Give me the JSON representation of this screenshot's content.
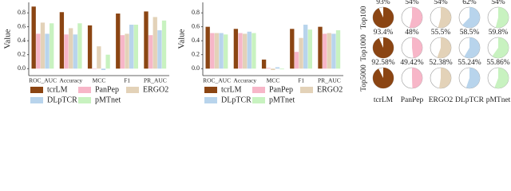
{
  "chart_data": [
    {
      "type": "bar",
      "y_label": "Value",
      "categories": [
        "ROC_AUC",
        "Accuracy",
        "MCC",
        "F1",
        "PR_AUC"
      ],
      "ylim": [
        -0.1,
        0.95
      ],
      "yticks": [
        {
          "value": 0,
          "label": "0.0"
        },
        {
          "value": 0.2,
          "label": "0.2"
        },
        {
          "value": 0.4,
          "label": "0.4"
        },
        {
          "value": 0.6,
          "label": "0.6"
        },
        {
          "value": 0.8,
          "label": "0.8"
        }
      ],
      "series": [
        {
          "name": "tcrLM",
          "color": "#8b4513",
          "values": [
            0.89,
            0.81,
            0.62,
            0.79,
            0.82
          ]
        },
        {
          "name": "PanPep",
          "color": "#f7b6c8",
          "values": [
            0.5,
            0.49,
            0.0,
            0.48,
            0.48
          ]
        },
        {
          "name": "ERGO2",
          "color": "#e3d2b8",
          "values": [
            0.66,
            0.58,
            0.32,
            0.5,
            0.74
          ]
        },
        {
          "name": "DLpTCR",
          "color": "#b8d4ec",
          "values": [
            0.5,
            0.49,
            -0.02,
            0.63,
            0.55
          ]
        },
        {
          "name": "pMTnet",
          "color": "#c8f2c0",
          "values": [
            0.65,
            0.65,
            0.2,
            0.63,
            0.69
          ]
        }
      ]
    },
    {
      "type": "bar",
      "y_label": "Value",
      "categories": [
        "ROC_AUC",
        "Accuracy",
        "MCC",
        "F1",
        "PR_AUC"
      ],
      "ylim": [
        -0.1,
        0.95
      ],
      "yticks": [
        {
          "value": 0,
          "label": "0.0"
        },
        {
          "value": 0.2,
          "label": "0.2"
        },
        {
          "value": 0.4,
          "label": "0.4"
        },
        {
          "value": 0.6,
          "label": "0.6"
        },
        {
          "value": 0.8,
          "label": "0.8"
        }
      ],
      "series": [
        {
          "name": "tcrLM",
          "color": "#8b4513",
          "values": [
            0.6,
            0.57,
            0.13,
            0.57,
            0.6
          ]
        },
        {
          "name": "PanPep",
          "color": "#f7b6c8",
          "values": [
            0.51,
            0.51,
            0.01,
            0.24,
            0.5
          ]
        },
        {
          "name": "ERGO2",
          "color": "#e3d2b8",
          "values": [
            0.51,
            0.5,
            -0.02,
            0.44,
            0.51
          ]
        },
        {
          "name": "DLpTCR",
          "color": "#b8d4ec",
          "values": [
            0.51,
            0.53,
            0.02,
            0.63,
            0.5
          ]
        },
        {
          "name": "pMTnet",
          "color": "#c8f2c0",
          "values": [
            0.49,
            0.51,
            -0.01,
            0.56,
            0.55
          ]
        }
      ]
    },
    {
      "type": "pie_grid",
      "rows": [
        "Top100",
        "Top1000",
        "Top5000"
      ],
      "columns": [
        "tcrLM",
        "PanPep",
        "ERGO2",
        "DLpTCR",
        "pMTnet"
      ],
      "colors": [
        "#8b4513",
        "#f7b6c8",
        "#e3d2b8",
        "#b8d4ec",
        "#c8f2c0"
      ],
      "values": [
        [
          93,
          54,
          54,
          62,
          54
        ],
        [
          93.4,
          48,
          55.5,
          58.5,
          59.8
        ],
        [
          92.58,
          49.42,
          52.38,
          55.24,
          55.86
        ]
      ],
      "value_labels": [
        [
          "93%",
          "54%",
          "54%",
          "62%",
          "54%"
        ],
        [
          "93.4%",
          "48%",
          "55.5%",
          "58.5%",
          "59.8%"
        ],
        [
          "92.58%",
          "49.42%",
          "52.38%",
          "55.24%",
          "55.86%"
        ]
      ]
    }
  ]
}
